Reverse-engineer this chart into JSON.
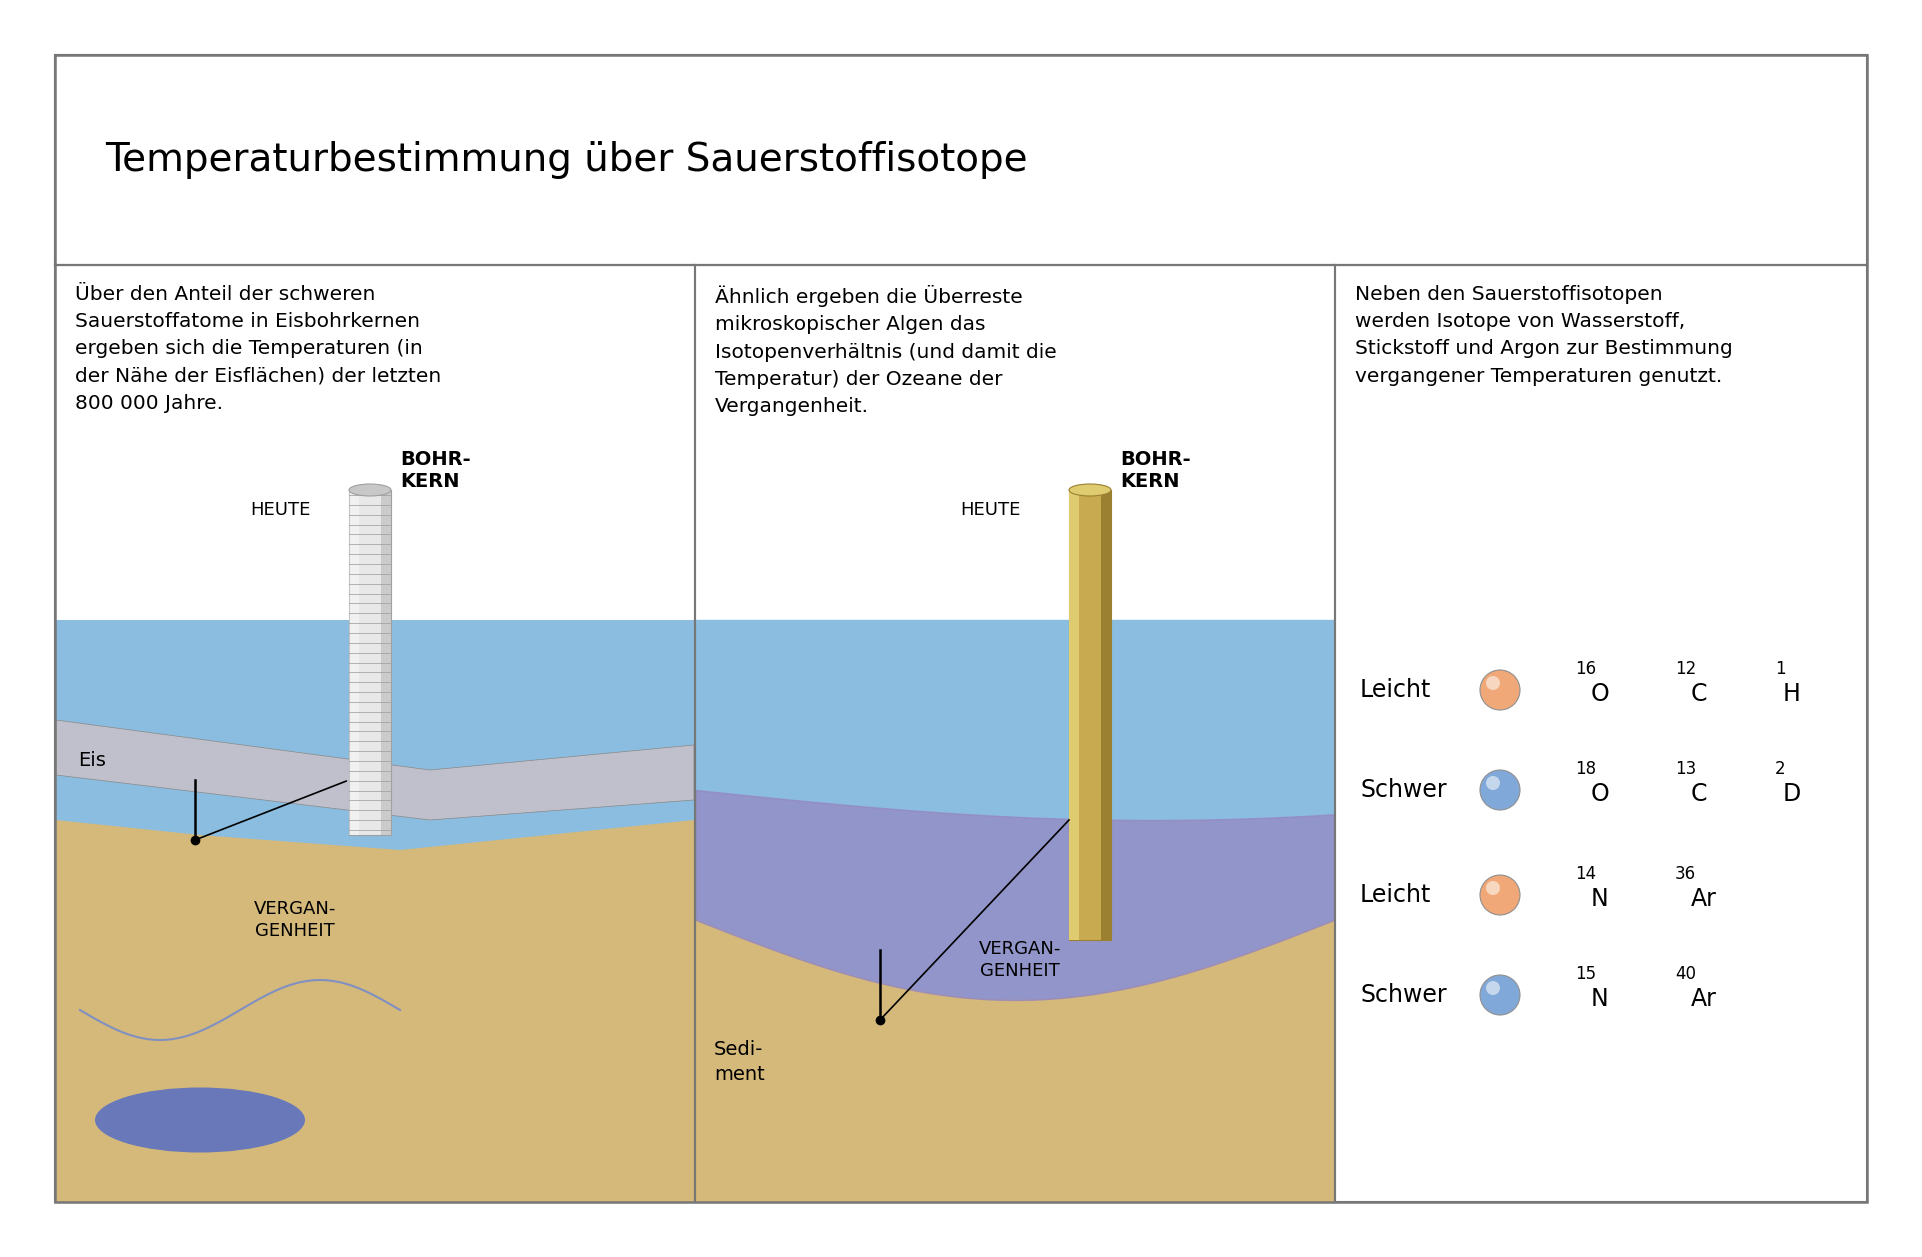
{
  "title": "Temperaturbestimmung über Sauerstoffisotope",
  "panel1_text": "Über den Anteil der schweren\nSauerstoffatome in Eisbohrkernen\nergeben sich die Temperaturen (in\nder Nähe der Eisflächen) der letzten\n800 000 Jahre.",
  "panel2_text": "Ähnlich ergeben die Überreste\nmikroskopischer Algen das\nIsotopenverhältnis (und damit die\nTemperatur) der Ozeane der\nVergangenheit.",
  "panel3_text": "Neben den Sauerstoffisotopen\nwerden Isotope von Wasserstoff,\nStickstoff und Argon zur Bestimmung\nvergangener Temperaturen genutzt.",
  "bg_color": "#ffffff",
  "sky_blue": "#8bbde0",
  "sand_color": "#d4b97a",
  "sediment_purple": "#9585c0",
  "ice_gray": "#c0c0cc",
  "lake_blue": "#6878b8",
  "river_blue": "#8090c0",
  "core1_light": "#e8e8e8",
  "core1_mid": "#c8c8c8",
  "core1_dark": "#a0a0a0",
  "core2_light": "#e0cc70",
  "core2_mid": "#c8aa50",
  "core2_dark": "#9a8030",
  "orange_sphere": "#f0a878",
  "blue_sphere": "#80a8d8",
  "border_color": "#777777"
}
